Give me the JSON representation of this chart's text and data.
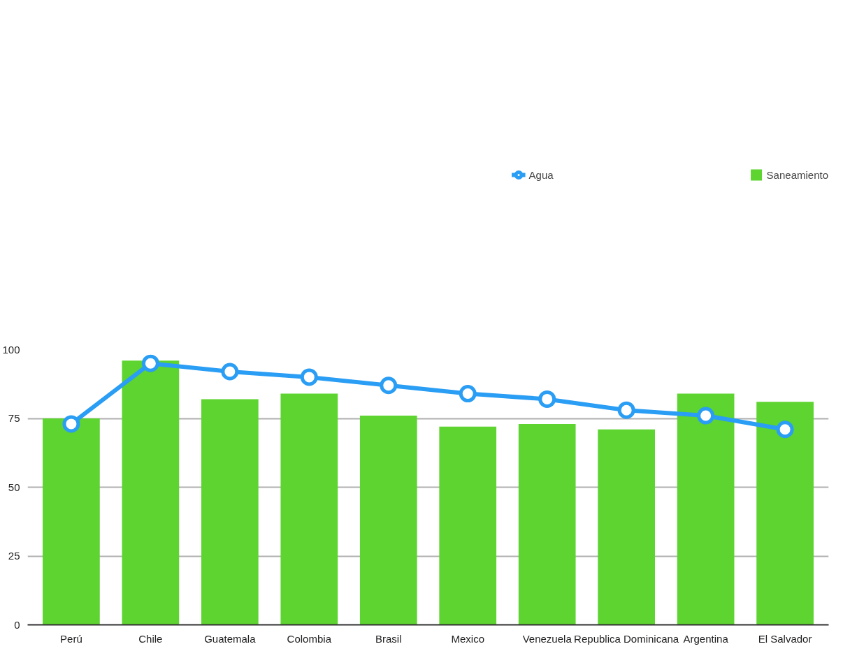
{
  "chart_data": {
    "type": "bar",
    "categories": [
      "Perú",
      "Chile",
      "Guatemala",
      "Colombia",
      "Brasil",
      "Mexico",
      "Venezuela",
      "Republica Dominicana",
      "Argentina",
      "El Salvador"
    ],
    "series": [
      {
        "name": "Agua",
        "type": "line",
        "color": "#2a9df4",
        "marker": "circle",
        "values": [
          73,
          95,
          92,
          90,
          87,
          84,
          82,
          78,
          76,
          71
        ]
      },
      {
        "name": "Saneamiento",
        "color": "#5dd42f",
        "values": [
          75,
          96,
          82,
          84,
          76,
          72,
          73,
          71,
          84,
          81
        ]
      }
    ],
    "ylim": [
      0,
      100
    ],
    "yticks": [
      0,
      25,
      50,
      75,
      100
    ],
    "grid": "y",
    "legend": "top"
  }
}
